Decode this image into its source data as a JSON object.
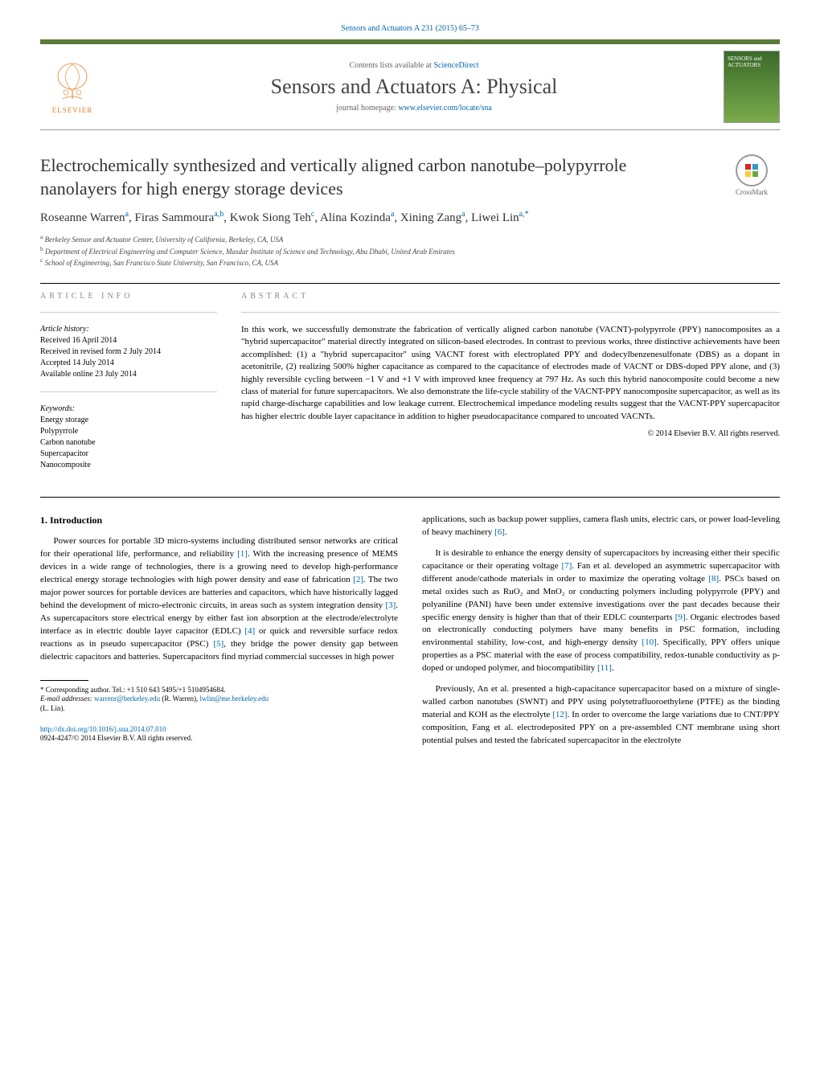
{
  "header": {
    "top_ref": "Sensors and Actuators A 231 (2015) 65–73",
    "contents_prefix": "Contents lists available at ",
    "contents_link": "ScienceDirect",
    "journal_name": "Sensors and Actuators A: Physical",
    "homepage_prefix": "journal homepage: ",
    "homepage_link": "www.elsevier.com/locate/sna",
    "publisher": "ELSEVIER",
    "cover_text": "SENSORS and ACTUATORS",
    "crossmark": "CrossMark"
  },
  "title": "Electrochemically synthesized and vertically aligned carbon nanotube–polypyrrole nanolayers for high energy storage devices",
  "authors_html": "Roseanne Warren<sup>a</sup>, Firas Sammoura<sup>a,b</sup>, Kwok Siong Teh<sup>c</sup>, Alina Kozinda<sup>a</sup>, Xining Zang<sup>a</sup>, Liwei Lin<sup>a,*</sup>",
  "affiliations": {
    "a": "Berkeley Sensor and Actuator Center, University of California, Berkeley, CA, USA",
    "b": "Department of Electrical Engineering and Computer Science, Masdar Institute of Science and Technology, Abu Dhabi, United Arab Emirates",
    "c": "School of Engineering, San Francisco State University, San Francisco, CA, USA"
  },
  "article_info": {
    "label": "ARTICLE INFO",
    "history_label": "Article history:",
    "received": "Received 16 April 2014",
    "revised": "Received in revised form 2 July 2014",
    "accepted": "Accepted 14 July 2014",
    "online": "Available online 23 July 2014",
    "keywords_label": "Keywords:",
    "keywords": [
      "Energy storage",
      "Polypyrrole",
      "Carbon nanotube",
      "Supercapacitor",
      "Nanocomposite"
    ]
  },
  "abstract": {
    "label": "ABSTRACT",
    "text": "In this work, we successfully demonstrate the fabrication of vertically aligned carbon nanotube (VACNT)-polypyrrole (PPY) nanocomposites as a \"hybrid supercapacitor\" material directly integrated on silicon-based electrodes. In contrast to previous works, three distinctive achievements have been accomplished: (1) a \"hybrid supercapacitor\" using VACNT forest with electroplated PPY and dodecylbenzenesulfonate (DBS) as a dopant in acetonitrile, (2) realizing 500% higher capacitance as compared to the capacitance of electrodes made of VACNT or DBS-doped PPY alone, and (3) highly reversible cycling between −1 V and +1 V with improved knee frequency at 797 Hz. As such this hybrid nanocomposite could become a new class of material for future supercapacitors. We also demonstrate the life-cycle stability of the VACNT-PPY nanocomposite supercapacitor, as well as its rapid charge-discharge capabilities and low leakage current. Electrochemical impedance modeling results suggest that the VACNT-PPY supercapacitor has higher electric double layer capacitance in addition to higher pseudocapacitance compared to uncoated VACNTs.",
    "copyright": "© 2014 Elsevier B.V. All rights reserved."
  },
  "body": {
    "section_heading": "1. Introduction",
    "left_col": [
      "Power sources for portable 3D micro-systems including distributed sensor networks are critical for their operational life, performance, and reliability [1]. With the increasing presence of MEMS devices in a wide range of technologies, there is a growing need to develop high-performance electrical energy storage technologies with high power density and ease of fabrication [2]. The two major power sources for portable devices are batteries and capacitors, which have historically lagged behind the development of micro-electronic circuits, in areas such as system integration density [3]. As supercapacitors store electrical energy by either fast ion absorption at the electrode/electrolyte interface as in electric double layer capacitor (EDLC) [4] or quick and reversible surface redox reactions as in pseudo supercapacitor (PSC) [5], they bridge the power density gap between dielectric capacitors and batteries. Supercapacitors find myriad commercial successes in high power"
    ],
    "right_col": [
      "applications, such as backup power supplies, camera flash units, electric cars, or power load-leveling of heavy machinery [6].",
      "It is desirable to enhance the energy density of supercapacitors by increasing either their specific capacitance or their operating voltage [7]. Fan et al. developed an asymmetric supercapacitor with different anode/cathode materials in order to maximize the operating voltage [8]. PSCs based on metal oxides such as RuO₂ and MnO₂ or conducting polymers including polypyrrole (PPY) and polyaniline (PANI) have been under extensive investigations over the past decades because their specific energy density is higher than that of their EDLC counterparts [9]. Organic electrodes based on electronically conducting polymers have many benefits in PSC formation, including environmental stability, low-cost, and high-energy density [10]. Specifically, PPY offers unique properties as a PSC material with the ease of process compatibility, redox-tunable conductivity as p-doped or undoped polymer, and biocompatibility [11].",
      "Previously, An et al. presented a high-capacitance supercapacitor based on a mixture of single-walled carbon nanotubes (SWNT) and PPY using polytetrafluoroethylene (PTFE) as the binding material and KOH as the electrolyte [12]. In order to overcome the large variations due to CNT/PPY composition, Fang et al. electrodeposited PPY on a pre-assembled CNT membrane using short potential pulses and tested the fabricated supercapacitor in the electrolyte"
    ]
  },
  "footnotes": {
    "corr": "* Corresponding author. Tel.: +1 510 643 5495/+1 5104954684.",
    "email_label": "E-mail addresses: ",
    "email1": "warrenr@berkeley.edu",
    "email1_who": " (R. Warren), ",
    "email2": "lwlin@me.berkeley.edu",
    "email2_who": " (L. Lin)."
  },
  "doi": {
    "url": "http://dx.doi.org/10.1016/j.sna.2014.07.010",
    "issn_line": "0924-4247/© 2014 Elsevier B.V. All rights reserved."
  },
  "colors": {
    "accent": "#5a7a3a",
    "link": "#0066aa",
    "elsevier": "#e67e22"
  }
}
